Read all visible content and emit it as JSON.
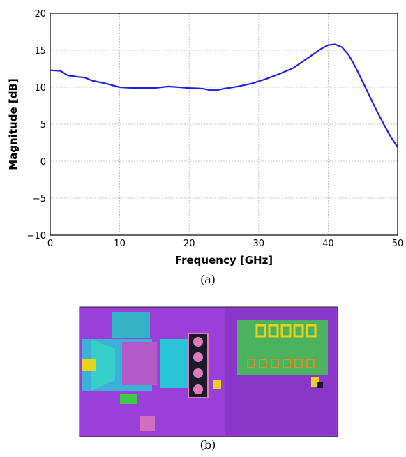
{
  "chart_data": {
    "type": "line",
    "xlabel": "Frequency [GHz]",
    "ylabel": "Magnitude [dB]",
    "xlim": [
      0,
      50
    ],
    "ylim": [
      -10,
      20
    ],
    "xticks": [
      0,
      10,
      20,
      30,
      40,
      50
    ],
    "yticks": [
      -10,
      -5,
      0,
      5,
      10,
      15,
      20
    ],
    "ytick_labels": [
      "−10",
      "−5",
      "0",
      "5",
      "10",
      "15",
      "20"
    ],
    "grid": true,
    "series": [
      {
        "color": "#2020e0",
        "x": [
          0,
          1.5,
          2.5,
          4,
          5,
          6,
          8,
          10,
          12,
          15,
          17,
          20,
          22,
          23,
          24,
          25,
          27,
          29,
          31,
          33,
          35,
          37,
          39,
          40,
          41,
          42,
          43,
          44,
          45,
          46,
          47,
          48,
          49,
          50
        ],
        "y": [
          12.3,
          12.2,
          11.6,
          11.4,
          11.3,
          10.9,
          10.5,
          10.0,
          9.9,
          9.9,
          10.1,
          9.9,
          9.8,
          9.6,
          9.6,
          9.8,
          10.1,
          10.5,
          11.1,
          11.8,
          12.6,
          13.9,
          15.2,
          15.7,
          15.8,
          15.4,
          14.3,
          12.6,
          10.7,
          8.7,
          6.8,
          5.0,
          3.3,
          1.9
        ]
      }
    ]
  },
  "captions": {
    "a": "(a)",
    "b": "(b)"
  },
  "layout_image": {
    "colors": {
      "background": "#9a3fd8",
      "cyan": "#2ac4d8",
      "yellow": "#e8d21c",
      "green": "#3fc84a",
      "orange": "#e08a2c",
      "pink": "#e07ab8",
      "dark": "#1a1a2a"
    }
  }
}
